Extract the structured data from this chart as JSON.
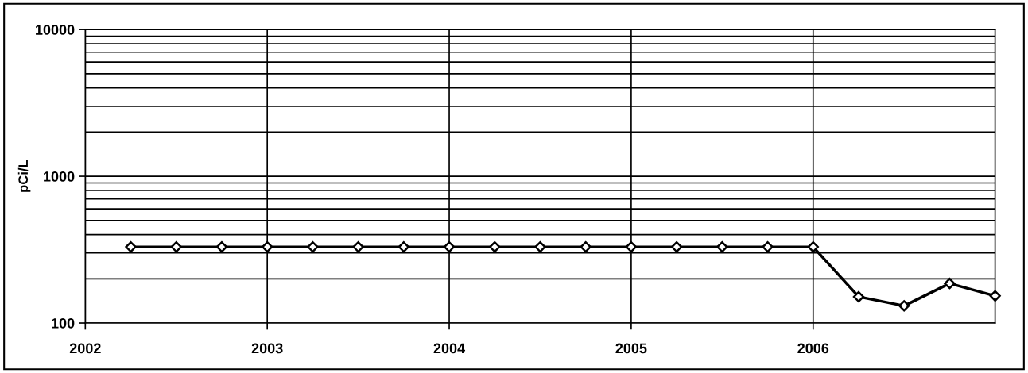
{
  "chart_data": {
    "type": "line",
    "ylabel": "pCi/L",
    "x": [
      2002.25,
      2002.5,
      2002.75,
      2003.0,
      2003.25,
      2003.5,
      2003.75,
      2004.0,
      2004.25,
      2004.5,
      2004.75,
      2005.0,
      2005.25,
      2005.5,
      2005.75,
      2006.0,
      2006.25,
      2006.5,
      2006.75,
      2007.0
    ],
    "series": [
      {
        "color": "#000000",
        "values": [
          330,
          330,
          330,
          330,
          330,
          330,
          330,
          330,
          330,
          330,
          330,
          330,
          330,
          330,
          330,
          330,
          151,
          131,
          186,
          153
        ]
      }
    ],
    "log": "y",
    "ylim": [
      100,
      10000
    ],
    "yticks": [
      100,
      1000,
      10000
    ],
    "xlim": [
      2002,
      2007
    ],
    "xticks": [
      2002,
      2003,
      2004,
      2005,
      2006
    ],
    "grid": true,
    "marker": "diamond",
    "line_style": "solid"
  }
}
